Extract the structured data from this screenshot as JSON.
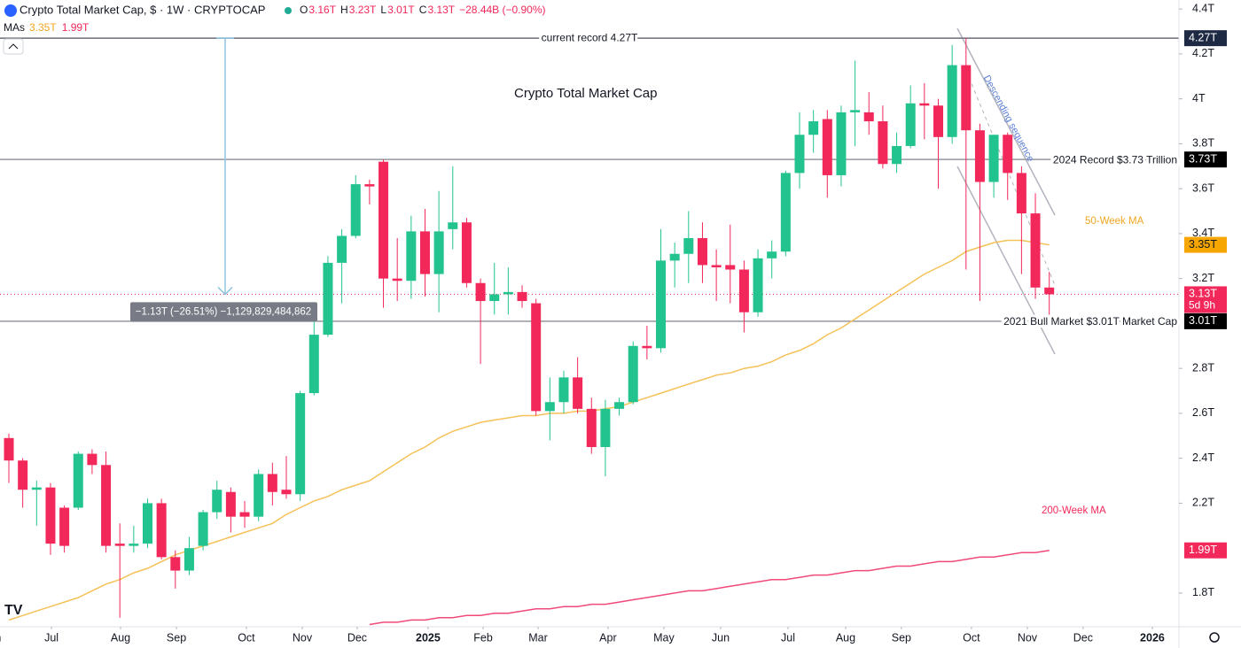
{
  "chart_data": {
    "type": "candlestick",
    "header": {
      "title": "Crypto Total Market Cap, $ · 1W · CRYPTOCAP",
      "ohlc": [
        {
          "key": "O",
          "val": "3.16T"
        },
        {
          "key": "H",
          "val": "3.23T"
        },
        {
          "key": "L",
          "val": "3.01T"
        },
        {
          "key": "C",
          "val": "3.13T"
        }
      ],
      "change": "−28.44B (−0.90%)",
      "ma_label": "MAs"
    },
    "annotation": "Crypto Total Market Cap",
    "channel_label": "Descending sequence",
    "up_color": "#22c38e",
    "down_color": "#f2285a",
    "open": [
      2.49,
      2.39,
      2.26,
      2.27,
      2.18,
      2.18,
      2.42,
      2.37,
      2.02,
      2.01,
      2.02,
      2.2,
      1.96,
      1.9,
      2.01,
      2.16,
      2.25,
      2.16,
      2.14,
      2.33,
      2.26,
      2.24,
      2.69,
      2.95,
      3.27,
      3.39,
      3.62,
      3.72,
      3.2,
      3.19,
      3.41,
      3.22,
      3.42,
      3.45,
      3.18,
      3.1,
      3.13,
      3.14,
      3.09,
      2.61,
      2.65,
      2.76,
      2.62,
      2.45,
      2.62,
      2.65,
      2.9,
      2.89,
      3.28,
      3.31,
      3.38,
      3.26,
      3.26,
      3.24,
      3.05,
      3.29,
      3.32,
      3.67,
      3.84,
      3.91,
      3.66,
      3.94,
      3.94,
      3.9,
      3.71,
      3.79,
      3.98,
      3.97,
      3.83,
      4.15,
      3.86,
      3.63,
      3.84,
      3.67,
      3.49,
      3.16
    ],
    "high": [
      2.51,
      2.4,
      2.3,
      2.29,
      2.19,
      2.43,
      2.44,
      2.43,
      2.11,
      2.1,
      2.22,
      2.22,
      1.99,
      2.05,
      2.17,
      2.3,
      2.27,
      2.21,
      2.35,
      2.38,
      2.41,
      2.7,
      3.01,
      3.3,
      3.42,
      3.66,
      3.64,
      3.73,
      3.38,
      3.48,
      3.51,
      3.59,
      3.7,
      3.47,
      3.2,
      3.27,
      3.25,
      3.17,
      3.11,
      2.76,
      2.79,
      2.85,
      2.67,
      2.66,
      2.67,
      2.92,
      2.99,
      3.42,
      3.36,
      3.5,
      3.45,
      3.33,
      3.44,
      3.28,
      3.33,
      3.37,
      3.68,
      3.94,
      3.95,
      3.95,
      3.97,
      4.17,
      4.03,
      3.97,
      3.85,
      4.06,
      4.07,
      4.0,
      4.24,
      4.27,
      3.89,
      3.84,
      3.85,
      3.7,
      3.58,
      3.23
    ],
    "low": [
      2.29,
      2.18,
      2.1,
      1.97,
      1.98,
      2.17,
      2.33,
      1.98,
      1.69,
      1.98,
      2.0,
      1.95,
      1.82,
      1.88,
      1.99,
      2.13,
      2.07,
      2.09,
      2.12,
      2.19,
      2.22,
      2.21,
      2.68,
      2.94,
      3.09,
      3.38,
      3.53,
      3.07,
      3.1,
      3.11,
      3.12,
      3.05,
      3.33,
      3.16,
      2.82,
      3.04,
      3.04,
      3.07,
      2.59,
      2.48,
      2.6,
      2.6,
      2.42,
      2.32,
      2.59,
      2.64,
      2.84,
      2.87,
      3.16,
      3.18,
      3.18,
      3.1,
      3.09,
      2.96,
      3.03,
      3.2,
      3.3,
      3.6,
      3.76,
      3.56,
      3.61,
      3.79,
      3.84,
      3.69,
      3.67,
      3.78,
      3.82,
      3.6,
      3.8,
      3.24,
      3.1,
      3.56,
      3.55,
      3.22,
      3.11,
      3.01
    ],
    "close": [
      2.39,
      2.26,
      2.27,
      2.02,
      2.01,
      2.42,
      2.37,
      2.01,
      2.01,
      2.02,
      2.2,
      1.96,
      1.9,
      2.0,
      2.16,
      2.26,
      2.14,
      2.14,
      2.33,
      2.25,
      2.24,
      2.69,
      2.95,
      3.27,
      3.39,
      3.62,
      3.61,
      3.2,
      3.19,
      3.41,
      3.22,
      3.41,
      3.45,
      3.18,
      3.1,
      3.13,
      3.14,
      3.1,
      2.61,
      2.65,
      2.76,
      2.62,
      2.45,
      2.62,
      2.65,
      2.9,
      2.89,
      3.28,
      3.31,
      3.38,
      3.26,
      3.25,
      3.24,
      3.05,
      3.29,
      3.32,
      3.67,
      3.84,
      3.9,
      3.66,
      3.94,
      3.95,
      3.9,
      3.71,
      3.79,
      3.98,
      3.97,
      3.83,
      4.15,
      3.86,
      3.63,
      3.84,
      3.67,
      3.49,
      3.16,
      3.13
    ],
    "series": [
      {
        "name": "50-Week MA",
        "color": "#f5c158",
        "tag": "3.35T",
        "values": [
          1.68,
          1.7,
          1.72,
          1.74,
          1.76,
          1.78,
          1.81,
          1.84,
          1.86,
          1.89,
          1.91,
          1.94,
          1.97,
          1.99,
          2.01,
          2.03,
          2.05,
          2.07,
          2.09,
          2.11,
          2.15,
          2.18,
          2.21,
          2.23,
          2.26,
          2.28,
          2.3,
          2.34,
          2.38,
          2.42,
          2.45,
          2.49,
          2.52,
          2.54,
          2.56,
          2.57,
          2.58,
          2.59,
          2.59,
          2.6,
          2.6,
          2.61,
          2.61,
          2.62,
          2.63,
          2.65,
          2.67,
          2.69,
          2.71,
          2.73,
          2.75,
          2.77,
          2.78,
          2.8,
          2.81,
          2.83,
          2.86,
          2.88,
          2.91,
          2.95,
          2.98,
          3.02,
          3.06,
          3.1,
          3.14,
          3.18,
          3.22,
          3.25,
          3.28,
          3.32,
          3.34,
          3.36,
          3.37,
          3.37,
          3.36,
          3.35
        ]
      },
      {
        "name": "200-Week MA",
        "color": "#f2497b",
        "tag": "1.99T",
        "values": [
          null,
          null,
          null,
          null,
          null,
          null,
          null,
          null,
          null,
          null,
          null,
          null,
          null,
          null,
          null,
          null,
          null,
          null,
          null,
          null,
          null,
          null,
          null,
          null,
          null,
          null,
          1.66,
          1.67,
          1.67,
          1.68,
          1.68,
          1.69,
          1.69,
          1.7,
          1.7,
          1.71,
          1.71,
          1.72,
          1.73,
          1.73,
          1.74,
          1.74,
          1.75,
          1.75,
          1.76,
          1.77,
          1.78,
          1.79,
          1.8,
          1.81,
          1.81,
          1.82,
          1.83,
          1.84,
          1.85,
          1.86,
          1.86,
          1.87,
          1.88,
          1.88,
          1.89,
          1.9,
          1.9,
          1.91,
          1.92,
          1.92,
          1.93,
          1.94,
          1.94,
          1.95,
          1.96,
          1.96,
          1.97,
          1.98,
          1.98,
          1.99
        ]
      }
    ],
    "levels": [
      {
        "name": "current record 4.27T",
        "value": 4.27,
        "tag": "4.27T"
      },
      {
        "name": "2024 Record $3.73 Trillion",
        "value": 3.73,
        "tag": "3.73T"
      },
      {
        "name": "2021 Bull Market $3.01T Market Cap",
        "value": 3.01,
        "tag": "3.01T"
      }
    ],
    "price_tag": {
      "value": 3.13,
      "label": "3.13T",
      "countdown": "5d 9h"
    },
    "measure": {
      "from": 4.27,
      "to": 3.13,
      "label": "−1.13T (−26.51%) −1,129,829,484,862"
    },
    "ylim": [
      1.65,
      4.44
    ],
    "yticks": [
      {
        "value": 4.4,
        "label": "4.4T"
      },
      {
        "value": 4.2,
        "label": "4.2T"
      },
      {
        "value": 4.0,
        "label": "4T"
      },
      {
        "value": 3.8,
        "label": "3.8T"
      },
      {
        "value": 3.6,
        "label": "3.6T"
      },
      {
        "value": 3.4,
        "label": "3.4T"
      },
      {
        "value": 3.2,
        "label": "3.2T"
      },
      {
        "value": 2.8,
        "label": "2.8T"
      },
      {
        "value": 2.6,
        "label": "2.6T"
      },
      {
        "value": 2.4,
        "label": "2.4T"
      },
      {
        "value": 2.2,
        "label": "2.2T"
      },
      {
        "value": 1.8,
        "label": "1.8T"
      }
    ],
    "xlim": [
      -0.64,
      84.35
    ],
    "xticks": [
      {
        "value": -1.2,
        "label": "Jun"
      },
      {
        "value": 3.07,
        "label": "Jul"
      },
      {
        "value": 8.05,
        "label": "Aug"
      },
      {
        "value": 12.08,
        "label": "Sep"
      },
      {
        "value": 17.12,
        "label": "Oct"
      },
      {
        "value": 21.15,
        "label": "Nov"
      },
      {
        "value": 25.11,
        "label": "Dec"
      },
      {
        "value": 30.22,
        "label": "2025"
      },
      {
        "value": 34.19,
        "label": "Feb"
      },
      {
        "value": 38.15,
        "label": "Mar"
      },
      {
        "value": 43.19,
        "label": "Apr"
      },
      {
        "value": 47.22,
        "label": "May"
      },
      {
        "value": 51.31,
        "label": "Jun"
      },
      {
        "value": 56.17,
        "label": "Jul"
      },
      {
        "value": 60.32,
        "label": "Aug"
      },
      {
        "value": 64.34,
        "label": "Sep"
      },
      {
        "value": 69.39,
        "label": "Oct"
      },
      {
        "value": 73.42,
        "label": "Nov"
      },
      {
        "value": 77.44,
        "label": "Dec"
      },
      {
        "value": 82.43,
        "label": "2026"
      }
    ]
  }
}
